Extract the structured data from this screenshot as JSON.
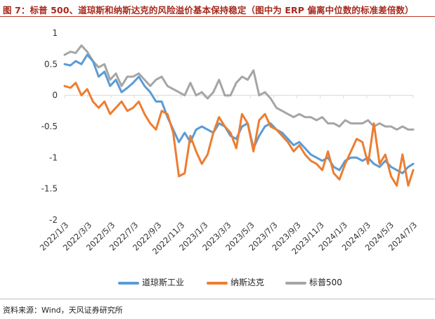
{
  "figure": {
    "title": "图 7：标普 500、道琼斯和纳斯达克的风险溢价基本保持稳定（图中为 ERP 偏离中位数的标准差倍数）",
    "source": "资料来源：Wind，天风证券研究所"
  },
  "colors": {
    "dow": "#5b9bd5",
    "nasdaq": "#ed7d31",
    "sp500": "#a5a5a5",
    "title": "#a52a1d",
    "axis": "#d9d9d9"
  },
  "chart_data": {
    "type": "line",
    "title": "",
    "xlabel": "",
    "ylabel": "",
    "ylim": [
      -2,
      1
    ],
    "yticks": [
      1,
      0.5,
      0,
      -0.5,
      -1,
      -1.5,
      -2
    ],
    "ytick_labels": [
      "1",
      "0.5",
      "0",
      "-0.5",
      "-1",
      "-1.5",
      "-2"
    ],
    "xlim": [
      "2022-01-03",
      "2024-07-03"
    ],
    "xtick_labels": [
      "2022/1/3",
      "2022/3/3",
      "2022/5/3",
      "2022/7/3",
      "2022/9/3",
      "2022/11/3",
      "2023/1/3",
      "2023/3/3",
      "2023/5/3",
      "2023/7/3",
      "2023/9/3",
      "2023/11/3",
      "2024/1/3",
      "2024/3/3",
      "2024/5/3",
      "2024/7/3"
    ],
    "legend_position": "bottom",
    "grid": false,
    "x": [
      "2022-01-03",
      "2022-01-18",
      "2022-02-01",
      "2022-02-16",
      "2022-03-03",
      "2022-03-18",
      "2022-04-02",
      "2022-04-17",
      "2022-05-02",
      "2022-05-17",
      "2022-06-01",
      "2022-06-16",
      "2022-07-01",
      "2022-07-16",
      "2022-07-31",
      "2022-08-15",
      "2022-08-30",
      "2022-09-14",
      "2022-09-29",
      "2022-10-14",
      "2022-10-29",
      "2022-11-13",
      "2022-11-28",
      "2022-12-13",
      "2022-12-28",
      "2023-01-12",
      "2023-01-27",
      "2023-02-11",
      "2023-02-26",
      "2023-03-13",
      "2023-03-28",
      "2023-04-12",
      "2023-04-27",
      "2023-05-12",
      "2023-05-27",
      "2023-06-11",
      "2023-06-26",
      "2023-07-11",
      "2023-07-26",
      "2023-08-10",
      "2023-08-25",
      "2023-09-09",
      "2023-09-24",
      "2023-10-09",
      "2023-10-24",
      "2023-11-08",
      "2023-11-23",
      "2023-12-08",
      "2023-12-23",
      "2024-01-07",
      "2024-01-22",
      "2024-02-06",
      "2024-02-21",
      "2024-03-07",
      "2024-03-22",
      "2024-04-06",
      "2024-04-21",
      "2024-05-06",
      "2024-05-21",
      "2024-06-05",
      "2024-06-20",
      "2024-07-03"
    ],
    "series": [
      {
        "name": "道琼斯工业",
        "color_key": "dow",
        "values": [
          0.5,
          0.48,
          0.55,
          0.5,
          0.65,
          0.55,
          0.3,
          0.38,
          0.15,
          0.25,
          0.05,
          0.12,
          0.2,
          0.3,
          0.15,
          0.05,
          -0.1,
          -0.1,
          -0.35,
          -0.55,
          -0.75,
          -0.6,
          -0.75,
          -0.55,
          -0.5,
          -0.55,
          -0.6,
          -0.45,
          -0.5,
          -0.65,
          -0.7,
          -0.5,
          -0.45,
          -0.85,
          -0.65,
          -0.5,
          -0.45,
          -0.55,
          -0.6,
          -0.7,
          -0.8,
          -0.75,
          -0.85,
          -0.95,
          -1.0,
          -1.05,
          -1.0,
          -1.15,
          -1.2,
          -1.05,
          -1.0,
          -1.0,
          -1.05,
          -1.0,
          -1.1,
          -1.15,
          -1.05,
          -1.15,
          -1.2,
          -1.25,
          -1.15,
          -1.1
        ]
      },
      {
        "name": "纳斯达克",
        "color_key": "nasdaq",
        "values": [
          0.15,
          0.12,
          0.2,
          0.0,
          0.1,
          -0.1,
          -0.2,
          -0.1,
          -0.3,
          -0.2,
          -0.1,
          -0.25,
          -0.2,
          -0.1,
          -0.3,
          -0.45,
          -0.55,
          -0.25,
          -0.3,
          -0.6,
          -1.3,
          -1.25,
          -0.65,
          -0.9,
          -1.1,
          -0.95,
          -0.6,
          -0.35,
          -0.5,
          -0.6,
          -0.85,
          -0.3,
          -0.45,
          -0.9,
          -0.4,
          -0.3,
          -0.5,
          -0.55,
          -0.65,
          -0.75,
          -0.9,
          -0.8,
          -0.95,
          -1.05,
          -1.1,
          -1.2,
          -0.9,
          -1.25,
          -1.35,
          -1.1,
          -0.9,
          -0.7,
          -0.75,
          -1.1,
          -0.45,
          -1.1,
          -0.95,
          -1.3,
          -1.45,
          -0.95,
          -1.45,
          -1.2
        ]
      },
      {
        "name": "标普500",
        "color_key": "sp500",
        "values": [
          0.65,
          0.7,
          0.68,
          0.8,
          0.7,
          0.55,
          0.45,
          0.5,
          0.25,
          0.35,
          0.15,
          0.3,
          0.3,
          0.35,
          0.25,
          0.15,
          0.25,
          0.3,
          0.15,
          0.1,
          0.05,
          0.0,
          0.2,
          0.0,
          0.05,
          -0.05,
          0.05,
          0.25,
          0.0,
          0.0,
          0.2,
          0.3,
          0.25,
          0.4,
          0.0,
          0.05,
          -0.05,
          -0.2,
          -0.25,
          -0.3,
          -0.35,
          -0.3,
          -0.35,
          -0.35,
          -0.4,
          -0.35,
          -0.45,
          -0.45,
          -0.5,
          -0.4,
          -0.45,
          -0.45,
          -0.45,
          -0.4,
          -0.5,
          -0.45,
          -0.5,
          -0.5,
          -0.55,
          -0.5,
          -0.55,
          -0.55
        ]
      }
    ]
  }
}
